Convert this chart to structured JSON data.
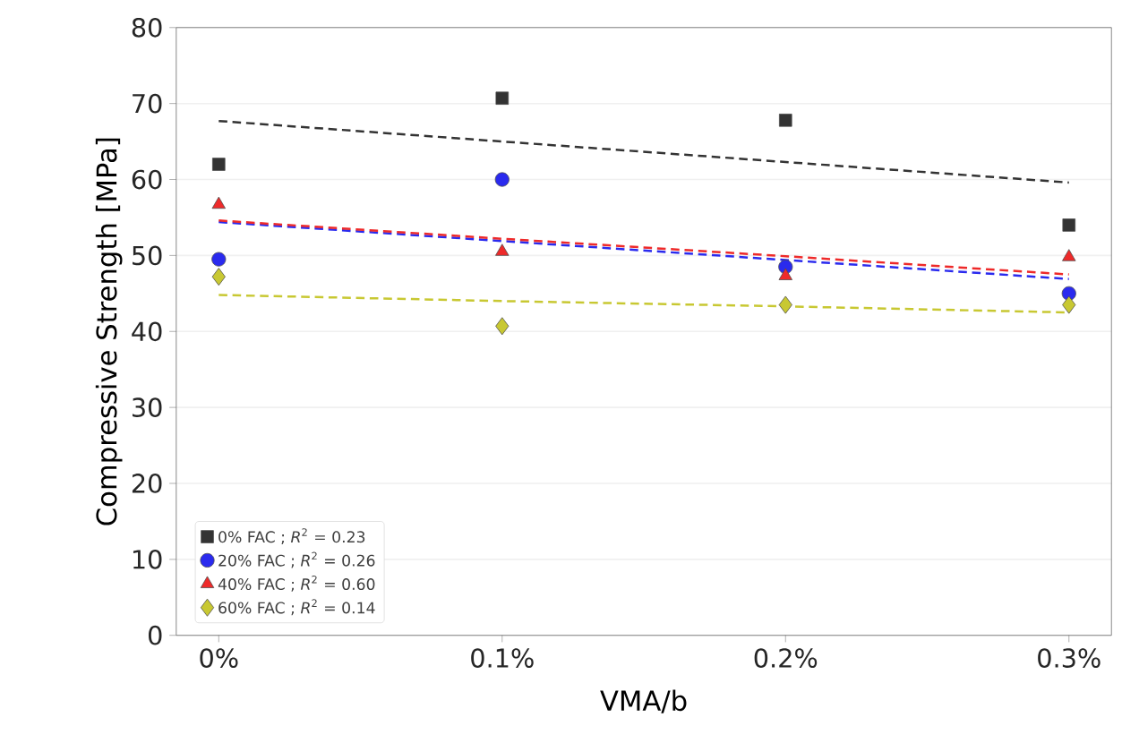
{
  "chart_data": {
    "type": "scatter",
    "xlabel": "VMA/b",
    "ylabel": "Compressive Strength [MPa]",
    "x": [
      0,
      0.1,
      0.2,
      0.3
    ],
    "series": [
      {
        "name": "0% FAC  ;  *R*$^{2}$ = 0.23",
        "color": "#333333",
        "marker": "square",
        "values": [
          62,
          70.7,
          67.8,
          54
        ]
      },
      {
        "name": "20% FAC  ;  *R*$^{2}$ = 0.26",
        "color": "#2a2aee",
        "marker": "circle",
        "values": [
          49.5,
          60,
          48.5,
          45
        ]
      },
      {
        "name": "40% FAC  ;  *R*$^{2}$ = 0.60",
        "color": "#ee2a2a",
        "marker": "triangle",
        "values": [
          56.7,
          50.5,
          47.3,
          49.8
        ]
      },
      {
        "name": "60% FAC  ;  *R*$^{2}$ = 0.14",
        "color": "#c8c832",
        "marker": "diamond",
        "values": [
          47.2,
          40.7,
          43.5,
          43.5
        ]
      },
      {
        "type": "line",
        "color": "#333333",
        "line_style": "dashed",
        "values": [
          67.7,
          65.0,
          62.3,
          59.6
        ]
      },
      {
        "type": "line",
        "color": "#2a2aee",
        "line_style": "dashed",
        "values": [
          54.4,
          51.9,
          49.4,
          46.9
        ]
      },
      {
        "type": "line",
        "color": "#ee2a2a",
        "line_style": "dashed",
        "values": [
          54.6,
          52.2,
          49.9,
          47.5
        ]
      },
      {
        "type": "line",
        "color": "#c8c832",
        "line_style": "dashed",
        "values": [
          44.8,
          44.0,
          43.3,
          42.5
        ]
      }
    ],
    "xlim": [
      -0.015,
      0.315
    ],
    "ylim": [
      0,
      80
    ],
    "xticks": [
      {
        "value": 0,
        "label": "0%"
      },
      {
        "value": 0.1,
        "label": "0.1%"
      },
      {
        "value": 0.2,
        "label": "0.2%"
      },
      {
        "value": 0.3,
        "label": "0.3%"
      }
    ],
    "yticks": [
      0,
      10,
      20,
      30,
      40,
      50,
      60,
      70,
      80
    ],
    "grid": "y",
    "legend": "bottom left"
  }
}
